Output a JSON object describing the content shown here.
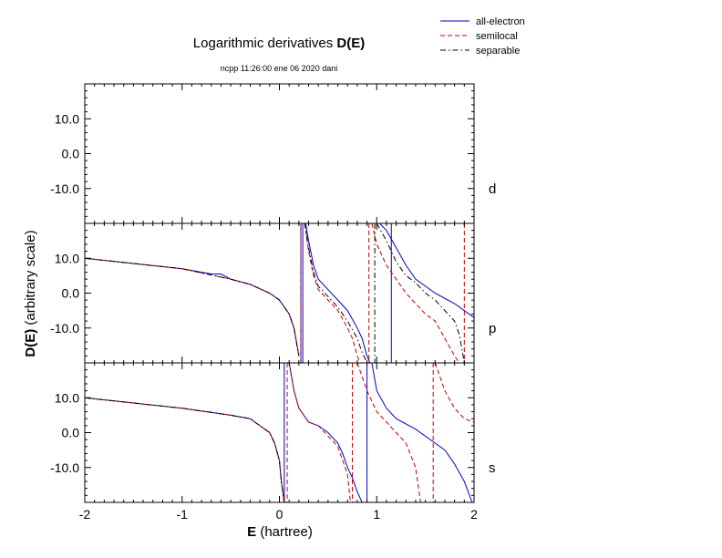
{
  "title_text": "Logarithmic derivatives ",
  "title_bold": "D(E)",
  "subtitle": "ncpp 11:26:00 ene 06 2020 dani",
  "legend": [
    {
      "label": "all-electron",
      "color": "#0000c0",
      "dash": "solid"
    },
    {
      "label": "semilocal",
      "color": "#c00000",
      "dash": "dashed"
    },
    {
      "label": "separable",
      "color": "#000000",
      "dash": "dashdot"
    }
  ],
  "xlabel_bold": "E",
  "xlabel_rest": " (hartree)",
  "ylabel_bold": "D(E)",
  "ylabel_rest": "  (arbitrary scale)",
  "x_tick_labels": [
    "-2",
    "-1",
    "0",
    "1",
    "2"
  ],
  "y_tick_labels": [
    "10.0",
    "0.0",
    "-10.0"
  ],
  "panel_labels": [
    "d",
    "p",
    "s"
  ],
  "chart_data": {
    "type": "line",
    "xlim": [
      -2,
      2
    ],
    "ylim": [
      -20,
      20
    ],
    "x_ticks": [
      -2,
      -1,
      0,
      1,
      2
    ],
    "y_ticks": [
      10,
      0,
      -10
    ],
    "grid": false,
    "legend_position": "top-right",
    "panels": [
      {
        "label": "d",
        "series": []
      },
      {
        "label": "p",
        "series": [
          {
            "name": "all-electron",
            "segments": [
              [
                [
                  -2,
                  10
                ],
                [
                  -1.5,
                  8.5
                ],
                [
                  -1,
                  7
                ],
                [
                  -0.7,
                  5.5
                ],
                [
                  -0.6,
                  5.5
                ],
                [
                  -0.5,
                  4
                ],
                [
                  -0.3,
                  2.5
                ],
                [
                  -0.1,
                  0
                ],
                [
                  0,
                  -2
                ],
                [
                  0.1,
                  -6
                ],
                [
                  0.15,
                  -10
                ],
                [
                  0.2,
                  -18
                ]
              ],
              [
                [
                  0.27,
                  20
                ],
                [
                  0.3,
                  15
                ],
                [
                  0.35,
                  8
                ],
                [
                  0.4,
                  4
                ],
                [
                  0.5,
                  1
                ],
                [
                  0.6,
                  -2
                ],
                [
                  0.7,
                  -5
                ],
                [
                  0.8,
                  -10
                ],
                [
                  0.85,
                  -13
                ],
                [
                  0.9,
                  -18
                ],
                [
                  0.93,
                  -20
                ]
              ],
              [
                [
                  1.03,
                  20
                ],
                [
                  1.1,
                  18
                ],
                [
                  1.3,
                  8
                ],
                [
                  1.4,
                  4
                ],
                [
                  1.6,
                  0
                ],
                [
                  1.8,
                  -3
                ],
                [
                  1.9,
                  -5
                ],
                [
                  2,
                  -7
                ]
              ]
            ]
          },
          {
            "name": "semilocal",
            "segments": [
              [
                [
                  -2,
                  10
                ],
                [
                  -1.5,
                  8.5
                ],
                [
                  -1,
                  7
                ],
                [
                  -0.5,
                  4
                ],
                [
                  -0.3,
                  2.5
                ],
                [
                  -0.1,
                  0
                ],
                [
                  0,
                  -2
                ],
                [
                  0.1,
                  -6
                ],
                [
                  0.15,
                  -10
                ],
                [
                  0.2,
                  -18
                ]
              ],
              [
                [
                  0.26,
                  20
                ],
                [
                  0.3,
                  12
                ],
                [
                  0.35,
                  5
                ],
                [
                  0.4,
                  1
                ],
                [
                  0.5,
                  -2
                ],
                [
                  0.6,
                  -5
                ],
                [
                  0.7,
                  -10
                ],
                [
                  0.75,
                  -13
                ],
                [
                  0.8,
                  -18
                ],
                [
                  0.83,
                  -20
                ]
              ],
              [
                [
                  0.95,
                  20
                ],
                [
                  1.0,
                  14
                ],
                [
                  1.1,
                  8
                ],
                [
                  1.2,
                  4
                ],
                [
                  1.3,
                  0
                ],
                [
                  1.4,
                  -3
                ],
                [
                  1.5,
                  -6
                ],
                [
                  1.6,
                  -8
                ],
                [
                  1.7,
                  -13
                ],
                [
                  1.8,
                  -18
                ],
                [
                  1.85,
                  -20
                ]
              ]
            ]
          },
          {
            "name": "separable",
            "segments": [
              [
                [
                  -2,
                  10
                ],
                [
                  -1.5,
                  8.5
                ],
                [
                  -1,
                  7
                ],
                [
                  -0.5,
                  4
                ],
                [
                  -0.3,
                  2.5
                ],
                [
                  -0.1,
                  0
                ],
                [
                  0,
                  -2
                ],
                [
                  0.1,
                  -6
                ],
                [
                  0.15,
                  -10
                ],
                [
                  0.2,
                  -18
                ]
              ],
              [
                [
                  0.26,
                  20
                ],
                [
                  0.3,
                  13
                ],
                [
                  0.35,
                  6
                ],
                [
                  0.4,
                  2
                ],
                [
                  0.5,
                  -1
                ],
                [
                  0.6,
                  -4
                ],
                [
                  0.7,
                  -8
                ],
                [
                  0.8,
                  -13
                ],
                [
                  0.85,
                  -17
                ],
                [
                  0.9,
                  -20
                ]
              ],
              [
                [
                  1.0,
                  20
                ],
                [
                  1.1,
                  15
                ],
                [
                  1.2,
                  9
                ],
                [
                  1.3,
                  5
                ],
                [
                  1.4,
                  3
                ],
                [
                  1.5,
                  0
                ],
                [
                  1.6,
                  -2
                ],
                [
                  1.7,
                  -5
                ],
                [
                  1.8,
                  -8
                ],
                [
                  1.85,
                  -12
                ],
                [
                  1.9,
                  -20
                ]
              ]
            ]
          }
        ],
        "poles": [
          {
            "x": 0.22,
            "name": "all-electron"
          },
          {
            "x": 0.24,
            "name": "all-electron"
          },
          {
            "x": 1.15,
            "name": "all-electron"
          },
          {
            "x": 0.22,
            "name": "semilocal"
          },
          {
            "x": 0.92,
            "name": "semilocal"
          },
          {
            "x": 1.9,
            "name": "semilocal"
          },
          {
            "x": 0.98,
            "name": "separable"
          }
        ]
      },
      {
        "label": "s",
        "series": [
          {
            "name": "all-electron",
            "segments": [
              [
                [
                  -2,
                  10
                ],
                [
                  -1.5,
                  8.5
                ],
                [
                  -1,
                  7
                ],
                [
                  -0.5,
                  5
                ],
                [
                  -0.3,
                  4
                ],
                [
                  -0.2,
                  2
                ],
                [
                  -0.1,
                  0
                ],
                [
                  -0.05,
                  -3
                ],
                [
                  0,
                  -8
                ],
                [
                  0.02,
                  -14
                ],
                [
                  0.05,
                  -20
                ]
              ],
              [
                [
                  0.1,
                  20
                ],
                [
                  0.15,
                  12
                ],
                [
                  0.2,
                  7
                ],
                [
                  0.3,
                  3
                ],
                [
                  0.4,
                  2
                ],
                [
                  0.5,
                  0
                ],
                [
                  0.6,
                  -3
                ],
                [
                  0.65,
                  -6
                ],
                [
                  0.7,
                  -10
                ],
                [
                  0.75,
                  -13
                ],
                [
                  0.8,
                  -17
                ],
                [
                  0.85,
                  -20
                ]
              ],
              [
                [
                  0.95,
                  20
                ],
                [
                  1.0,
                  12
                ],
                [
                  1.1,
                  7
                ],
                [
                  1.2,
                  4
                ],
                [
                  1.4,
                  1
                ],
                [
                  1.6,
                  -3
                ],
                [
                  1.7,
                  -5
                ],
                [
                  1.8,
                  -9
                ],
                [
                  1.9,
                  -14
                ],
                [
                  1.98,
                  -20
                ]
              ]
            ]
          },
          {
            "name": "semilocal",
            "segments": [
              [
                [
                  -2,
                  10
                ],
                [
                  -1.5,
                  8.5
                ],
                [
                  -1,
                  7
                ],
                [
                  -0.5,
                  5
                ],
                [
                  -0.3,
                  4
                ],
                [
                  -0.2,
                  2
                ],
                [
                  -0.1,
                  0
                ],
                [
                  -0.05,
                  -3
                ],
                [
                  0,
                  -8
                ],
                [
                  0.02,
                  -14
                ],
                [
                  0.05,
                  -20
                ]
              ],
              [
                [
                  0.1,
                  20
                ],
                [
                  0.15,
                  12
                ],
                [
                  0.2,
                  7
                ],
                [
                  0.3,
                  3
                ],
                [
                  0.4,
                  2
                ],
                [
                  0.5,
                  -1
                ],
                [
                  0.6,
                  -4
                ],
                [
                  0.65,
                  -8
                ],
                [
                  0.7,
                  -12
                ],
                [
                  0.73,
                  -20
                ]
              ],
              [
                [
                  0.8,
                  20
                ],
                [
                  0.9,
                  12
                ],
                [
                  1.0,
                  6
                ],
                [
                  1.1,
                  3
                ],
                [
                  1.2,
                  0
                ],
                [
                  1.3,
                  -3
                ],
                [
                  1.4,
                  -10
                ],
                [
                  1.45,
                  -20
                ]
              ],
              [
                [
                  1.6,
                  20
                ],
                [
                  1.7,
                  12
                ],
                [
                  1.8,
                  7
                ],
                [
                  1.9,
                  4
                ],
                [
                  2.0,
                  3
                ]
              ]
            ]
          },
          {
            "name": "separable",
            "segments": [
              [
                [
                  -2,
                  10
                ],
                [
                  -1.5,
                  8.5
                ],
                [
                  -1,
                  7
                ],
                [
                  -0.5,
                  5
                ],
                [
                  -0.3,
                  4
                ],
                [
                  -0.2,
                  2
                ],
                [
                  -0.1,
                  0
                ],
                [
                  -0.05,
                  -3
                ],
                [
                  0,
                  -8
                ],
                [
                  0.02,
                  -14
                ],
                [
                  0.05,
                  -20
                ]
              ]
            ]
          }
        ],
        "poles": [
          {
            "x": 0.05,
            "name": "all-electron"
          },
          {
            "x": 0.9,
            "name": "all-electron"
          },
          {
            "x": 0.08,
            "name": "semilocal"
          },
          {
            "x": 0.75,
            "name": "semilocal"
          },
          {
            "x": 1.58,
            "name": "semilocal"
          }
        ]
      }
    ]
  }
}
